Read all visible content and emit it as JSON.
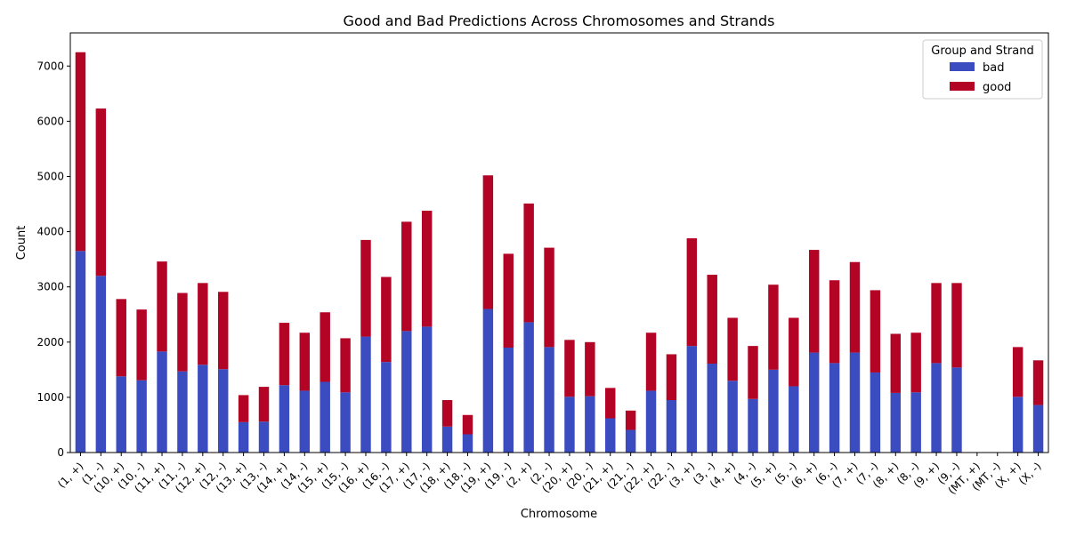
{
  "chart_data": {
    "type": "bar",
    "stacked": true,
    "title": "Good and Bad Predictions Across Chromosomes and Strands",
    "xlabel": "Chromosome",
    "ylabel": "Count",
    "ylim": [
      0,
      7600
    ],
    "yticks": [
      0,
      1000,
      2000,
      3000,
      4000,
      5000,
      6000,
      7000
    ],
    "grid": false,
    "legend": {
      "title": "Group and Strand",
      "position": "top-right"
    },
    "categories": [
      "(1, +)",
      "(1, -)",
      "(10, +)",
      "(10, -)",
      "(11, +)",
      "(11, -)",
      "(12, +)",
      "(12, -)",
      "(13, +)",
      "(13, -)",
      "(14, +)",
      "(14, -)",
      "(15, +)",
      "(15, -)",
      "(16, +)",
      "(16, -)",
      "(17, +)",
      "(17, -)",
      "(18, +)",
      "(18, -)",
      "(19, +)",
      "(19, -)",
      "(2, +)",
      "(2, -)",
      "(20, +)",
      "(20, -)",
      "(21, +)",
      "(21, -)",
      "(22, +)",
      "(22, -)",
      "(3, +)",
      "(3, -)",
      "(4, +)",
      "(4, -)",
      "(5, +)",
      "(5, -)",
      "(6, +)",
      "(6, -)",
      "(7, +)",
      "(7, -)",
      "(8, +)",
      "(8, -)",
      "(9, +)",
      "(9, -)",
      "(MT, +)",
      "(MT, -)",
      "(X, +)",
      "(X, -)"
    ],
    "series": [
      {
        "name": "bad",
        "color": "#3b4cc0",
        "values": [
          3650,
          3200,
          1380,
          1310,
          1830,
          1470,
          1590,
          1510,
          550,
          560,
          1220,
          1120,
          1280,
          1090,
          2100,
          1640,
          2200,
          2280,
          470,
          330,
          2600,
          1900,
          2360,
          1910,
          1010,
          1020,
          620,
          410,
          1120,
          950,
          1930,
          1610,
          1300,
          970,
          1500,
          1200,
          1810,
          1620,
          1810,
          1450,
          1080,
          1090,
          1620,
          1540,
          0,
          0,
          1010,
          860
        ]
      },
      {
        "name": "good",
        "color": "#b40426",
        "values": [
          3600,
          3030,
          1400,
          1280,
          1630,
          1420,
          1480,
          1400,
          490,
          630,
          1130,
          1050,
          1260,
          980,
          1750,
          1540,
          1980,
          2100,
          480,
          350,
          2420,
          1700,
          2150,
          1800,
          1030,
          980,
          550,
          350,
          1050,
          830,
          1950,
          1610,
          1140,
          960,
          1540,
          1240,
          1860,
          1500,
          1640,
          1490,
          1070,
          1080,
          1450,
          1530,
          0,
          0,
          900,
          810
        ]
      }
    ]
  }
}
